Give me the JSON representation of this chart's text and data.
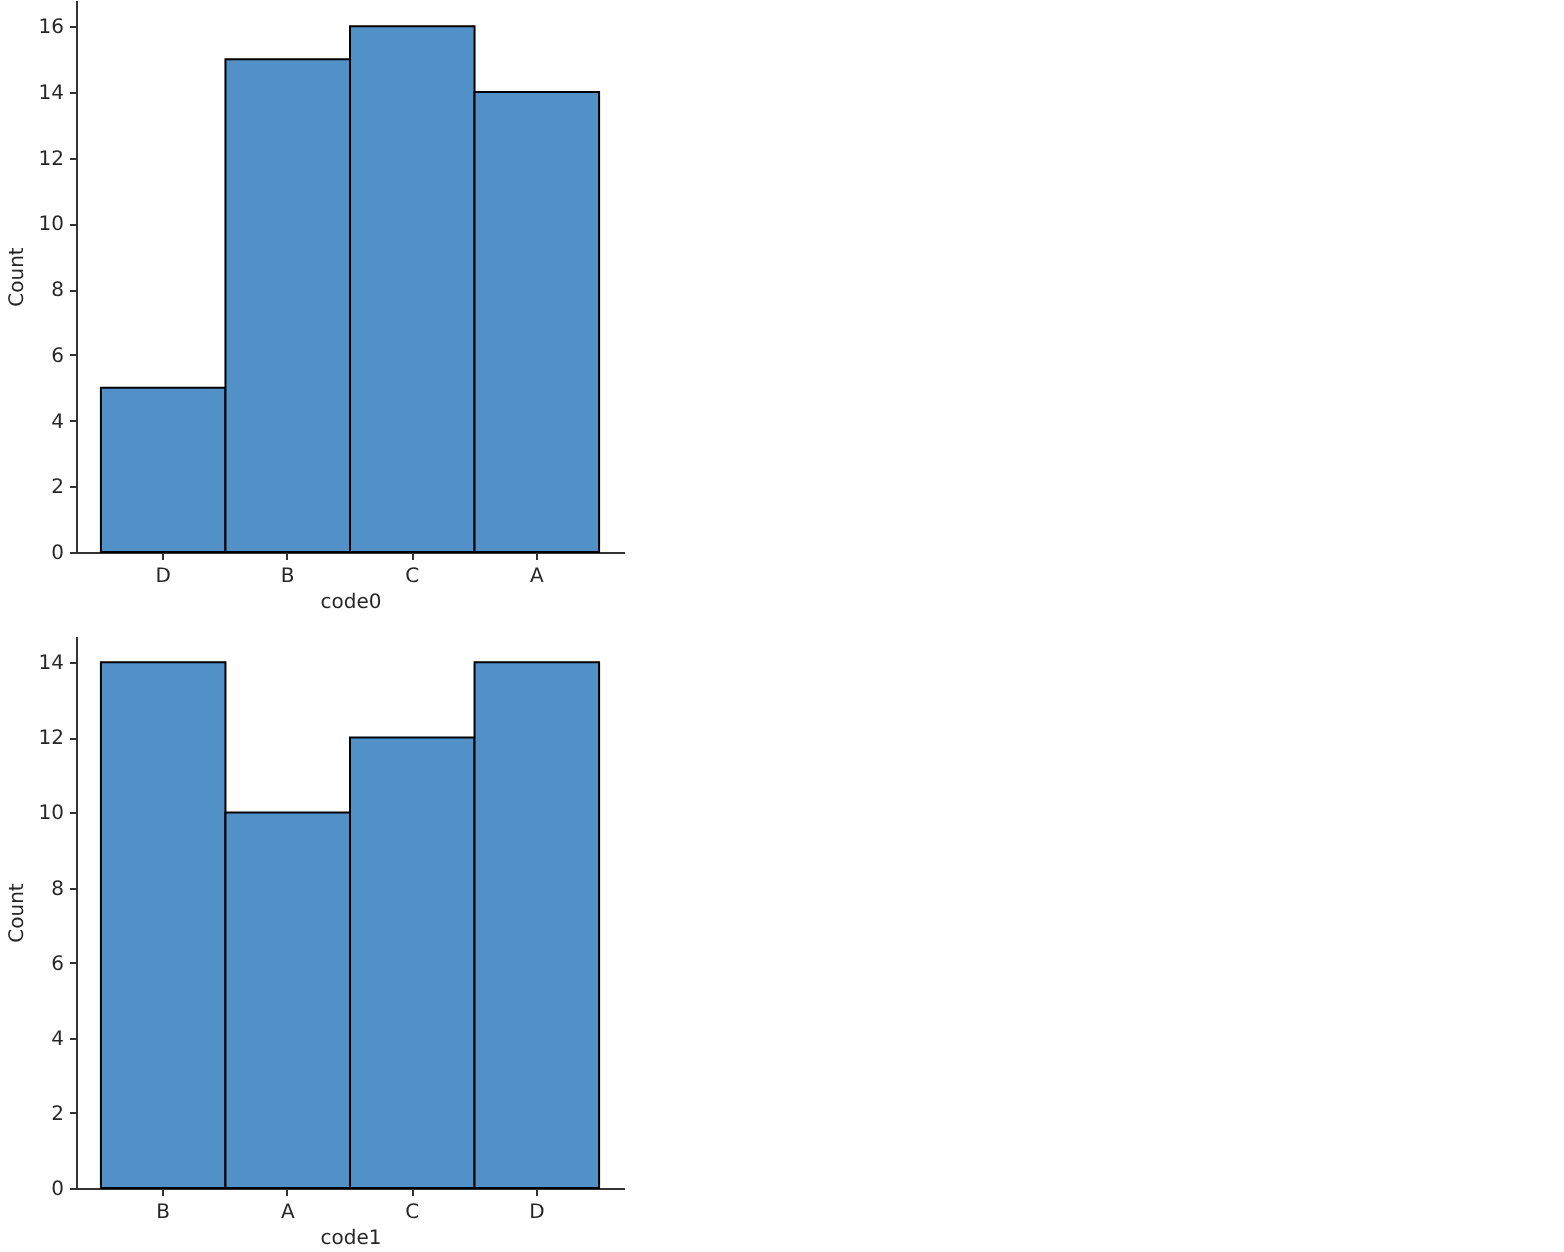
{
  "chart_data": [
    {
      "type": "bar",
      "categories": [
        "D",
        "B",
        "C",
        "A"
      ],
      "values": [
        5,
        15,
        16,
        14
      ],
      "color": "#5290c8",
      "xlabel": "code0",
      "ylabel": "Count",
      "ylim": [
        0,
        16.8
      ],
      "yticks": [
        0,
        2,
        4,
        6,
        8,
        10,
        12,
        14,
        16
      ]
    },
    {
      "type": "bar",
      "categories": [
        "B",
        "A",
        "C",
        "D"
      ],
      "values": [
        14,
        10,
        12,
        14
      ],
      "color": "#5290c8",
      "xlabel": "code1",
      "ylabel": "Count",
      "ylim": [
        0,
        14.7
      ],
      "yticks": [
        0,
        2,
        4,
        6,
        8,
        10,
        12,
        14
      ]
    }
  ]
}
